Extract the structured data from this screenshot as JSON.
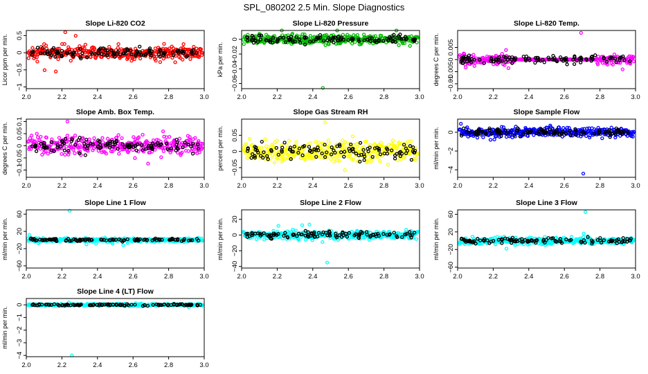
{
  "figure_title": "SPL_080202  2.5 Min. Slope Diagnostics",
  "chart_data": [
    {
      "type": "scatter",
      "title": "Slope Li-820 CO2",
      "ylabel": "Licor ppm per min.",
      "xlim": [
        2.0,
        3.0
      ],
      "ylim": [
        -1.05,
        0.65
      ],
      "yticks": [
        -1.0,
        -0.5,
        0.0,
        0.5
      ],
      "color": "#ff0000",
      "spread": 0.18,
      "outlier": 0.6,
      "xticks": [
        2.0,
        2.2,
        2.4,
        2.6,
        2.8,
        3.0
      ],
      "xticklabels": [
        "2.0",
        "2.2",
        "2.4",
        "2.6",
        "2.8",
        "3.0"
      ]
    },
    {
      "type": "scatter",
      "title": "Slope Li-820 Pressure",
      "ylabel": "kPa per min.",
      "xlim": [
        2.0,
        3.0
      ],
      "ylim": [
        -0.067,
        0.012
      ],
      "yticks": [
        -0.06,
        -0.04,
        -0.02,
        0.0
      ],
      "color": "#00bb00",
      "spread": 0.006,
      "outlier": -0.066,
      "xticks": [
        2.0,
        2.2,
        2.4,
        2.6,
        2.8,
        3.0
      ],
      "xticklabels": [
        "2.0",
        "2.2",
        "2.4",
        "2.6",
        "2.8",
        "3.0"
      ]
    },
    {
      "type": "scatter",
      "title": "Slope Li-820 Temp.",
      "ylabel": "degrees C per min.",
      "xlim": [
        2.0,
        3.0
      ],
      "ylim": [
        -0.012,
        0.012
      ],
      "yticks": [
        -0.01,
        -0.005,
        0.0,
        0.005
      ],
      "color": "#ff00ff",
      "spread": 0.002,
      "outlier": 0.011,
      "xticks": [
        2.0,
        2.2,
        2.4,
        2.6,
        2.8,
        3.0
      ],
      "xticklabels": [
        "2.0",
        "2.2",
        "2.4",
        "2.6",
        "2.8",
        "3.0"
      ]
    },
    {
      "type": "scatter",
      "title": "Slope Amb. Box Temp.",
      "ylabel": "degrees C per min.",
      "xlim": [
        2.0,
        3.0
      ],
      "ylim": [
        -0.13,
        0.11
      ],
      "yticks": [
        -0.1,
        -0.05,
        0.0,
        0.05,
        0.1
      ],
      "color": "#ff00ff",
      "spread": 0.035,
      "outlier": 0.1,
      "xticks": [
        2.0,
        2.2,
        2.4,
        2.6,
        2.8,
        3.0
      ],
      "xticklabels": [
        "2.0",
        "2.2",
        "2.4",
        "2.6",
        "2.8",
        "3.0"
      ]
    },
    {
      "type": "scatter",
      "title": "Slope Gas Stream RH",
      "ylabel": "percent per min.",
      "xlim": [
        2.0,
        3.0
      ],
      "ylim": [
        -0.08,
        0.1
      ],
      "yticks": [
        -0.05,
        0.0,
        0.05
      ],
      "color": "#ffff00",
      "spread": 0.03,
      "outlier": 0.09,
      "xticks": [
        2.0,
        2.2,
        2.4,
        2.6,
        2.8,
        3.0
      ],
      "xticklabels": [
        "2.0",
        "2.2",
        "2.4",
        "2.6",
        "2.8",
        "3.0"
      ]
    },
    {
      "type": "scatter",
      "title": "Slope Sample Flow",
      "ylabel": "ml/min per min.",
      "xlim": [
        2.0,
        3.0
      ],
      "ylim": [
        -4.8,
        1.4
      ],
      "yticks": [
        -4,
        -2,
        0
      ],
      "color": "#0000ff",
      "spread": 0.5,
      "outlier": -4.4,
      "xticks": [
        2.0,
        2.2,
        2.4,
        2.6,
        2.8,
        3.0
      ],
      "xticklabels": [
        "2.0",
        "2.2",
        "2.4",
        "2.6",
        "2.8",
        "3.0"
      ]
    },
    {
      "type": "scatter",
      "title": "Slope Line 1 Flow",
      "ylabel": "ml/min per min.",
      "xlim": [
        2.0,
        3.0
      ],
      "ylim": [
        -65,
        70
      ],
      "yticks": [
        -60,
        -20,
        20,
        60
      ],
      "color": "#00ffff",
      "spread": 4,
      "outlier": 68,
      "xticks": [
        2.0,
        2.2,
        2.4,
        2.6,
        2.8,
        3.0
      ],
      "xticklabels": [
        "2.0",
        "2.2",
        "2.4",
        "2.6",
        "2.8",
        "3.0"
      ]
    },
    {
      "type": "scatter",
      "title": "Slope Line 2 Flow",
      "ylabel": "ml/min per min.",
      "xlim": [
        2.0,
        3.0
      ],
      "ylim": [
        -42,
        32
      ],
      "yticks": [
        -40,
        -20,
        0,
        20
      ],
      "color": "#00ffff",
      "spread": 5,
      "outlier": -35,
      "xticks": [
        2.0,
        2.2,
        2.4,
        2.6,
        2.8,
        3.0
      ],
      "xticklabels": [
        "2.0",
        "2.2",
        "2.4",
        "2.6",
        "2.8",
        "3.0"
      ]
    },
    {
      "type": "scatter",
      "title": "Slope Line 3 Flow",
      "ylabel": "ml/min per min.",
      "xlim": [
        2.0,
        3.0
      ],
      "ylim": [
        -62,
        70
      ],
      "yticks": [
        -60,
        -20,
        20,
        60
      ],
      "color": "#00ffff",
      "spread": 7,
      "outlier": 65,
      "xticks": [
        2.0,
        2.2,
        2.4,
        2.6,
        2.8,
        3.0
      ],
      "xticklabels": [
        "2.0",
        "2.2",
        "2.4",
        "2.6",
        "2.8",
        "3.0"
      ]
    },
    {
      "type": "scatter",
      "title": "Slope Line 4 (LT) Flow",
      "ylabel": "ml/min per min.",
      "xlim": [
        2.0,
        3.0
      ],
      "ylim": [
        -4.1,
        0.5
      ],
      "yticks": [
        -4,
        -3,
        -2,
        -1,
        0
      ],
      "color": "#00ffff",
      "spread": 0.08,
      "outlier": -4.0,
      "xticks": [
        2.0,
        2.2,
        2.4,
        2.6,
        2.8,
        3.0
      ],
      "xticklabels": [
        "2.0",
        "2.2",
        "2.4",
        "2.6",
        "2.8",
        "3.0"
      ]
    }
  ]
}
